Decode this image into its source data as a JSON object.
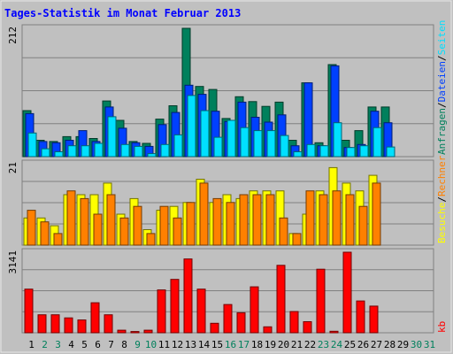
{
  "title": "Tages-Statistik im Monat Februar 2013",
  "legend_right_top": [
    "Anfragen",
    "Dateien",
    "Seiten"
  ],
  "legend_right_mid": [
    "Besuche",
    "Rechner"
  ],
  "legend_right_bot": [
    "kb"
  ],
  "separator": "/",
  "colors": {
    "background": "#c0c0c0",
    "frame": "#e8e8e8",
    "title": "#0000ff",
    "anfragen": "#00805c",
    "dateien": "#0040ff",
    "seiten": "#00e0ff",
    "besuche": "#ffff00",
    "rechner": "#ff8000",
    "kb": "#ff0000",
    "weekend_label": "#00805c",
    "weekday_label": "#000000"
  },
  "chart_data": [
    {
      "type": "bar",
      "panel": "hits",
      "ymax_label": "212",
      "ylim": [
        0,
        212
      ],
      "categories": [
        "1",
        "2",
        "3",
        "4",
        "5",
        "6",
        "7",
        "8",
        "9",
        "10",
        "11",
        "12",
        "13",
        "14",
        "15",
        "16",
        "17",
        "18",
        "19",
        "20",
        "21",
        "22",
        "23",
        "24",
        "25",
        "26",
        "27",
        "28",
        "29",
        "30",
        "31"
      ],
      "series": [
        {
          "name": "Anfragen",
          "values": [
            76,
            27,
            25,
            33,
            33,
            30,
            92,
            60,
            25,
            22,
            62,
            84,
            212,
            116,
            111,
            63,
            99,
            91,
            83,
            90,
            27,
            122,
            23,
            152,
            27,
            43,
            82,
            82,
            0,
            0,
            0
          ]
        },
        {
          "name": "Dateien",
          "values": [
            71,
            25,
            23,
            27,
            43,
            25,
            82,
            47,
            23,
            17,
            53,
            73,
            118,
            103,
            75,
            58,
            90,
            65,
            57,
            69,
            18,
            122,
            18,
            150,
            15,
            20,
            75,
            56,
            0,
            0,
            0
          ]
        },
        {
          "name": "Seiten",
          "values": [
            39,
            13,
            8,
            18,
            18,
            22,
            66,
            20,
            17,
            5,
            20,
            36,
            101,
            76,
            32,
            60,
            48,
            43,
            43,
            35,
            8,
            20,
            18,
            56,
            15,
            18,
            48,
            16,
            0,
            0,
            0
          ]
        }
      ]
    },
    {
      "type": "bar",
      "panel": "visits",
      "ymax_label": "21",
      "ylim": [
        0,
        21
      ],
      "categories": [
        "1",
        "2",
        "3",
        "4",
        "5",
        "6",
        "7",
        "8",
        "9",
        "10",
        "11",
        "12",
        "13",
        "14",
        "15",
        "16",
        "17",
        "18",
        "19",
        "20",
        "21",
        "22",
        "23",
        "24",
        "25",
        "26",
        "27",
        "28",
        "29",
        "30",
        "31"
      ],
      "series": [
        {
          "name": "Besuche",
          "values": [
            7,
            7,
            5,
            13,
            13,
            13,
            16,
            8,
            12,
            4,
            9,
            10,
            11,
            17,
            11,
            13,
            12,
            14,
            14,
            14,
            3,
            8,
            14,
            20,
            16,
            14,
            18,
            0,
            0,
            0,
            0
          ]
        },
        {
          "name": "Rechner",
          "values": [
            9,
            6,
            3,
            14,
            12,
            8,
            13,
            7,
            10,
            3,
            10,
            7,
            11,
            16,
            12,
            11,
            13,
            13,
            13,
            7,
            3,
            14,
            13,
            14,
            13,
            10,
            16,
            0,
            0,
            0,
            0
          ]
        }
      ]
    },
    {
      "type": "bar",
      "panel": "kb",
      "ymax_label": "3141",
      "ylim": [
        0,
        3141
      ],
      "categories": [
        "1",
        "2",
        "3",
        "4",
        "5",
        "6",
        "7",
        "8",
        "9",
        "10",
        "11",
        "12",
        "13",
        "14",
        "15",
        "16",
        "17",
        "18",
        "19",
        "20",
        "21",
        "22",
        "23",
        "24",
        "25",
        "26",
        "27",
        "28",
        "29",
        "30",
        "31"
      ],
      "series": [
        {
          "name": "kb",
          "values": [
            1700,
            700,
            700,
            580,
            500,
            1170,
            700,
            100,
            50,
            100,
            1670,
            2080,
            2880,
            1700,
            370,
            1100,
            780,
            1790,
            230,
            2630,
            830,
            430,
            2480,
            60,
            3141,
            1240,
            1040,
            0,
            0,
            0,
            0
          ]
        }
      ]
    }
  ],
  "weekend_days": [
    "2",
    "3",
    "9",
    "10",
    "16",
    "17",
    "23",
    "24",
    "30",
    "31"
  ]
}
